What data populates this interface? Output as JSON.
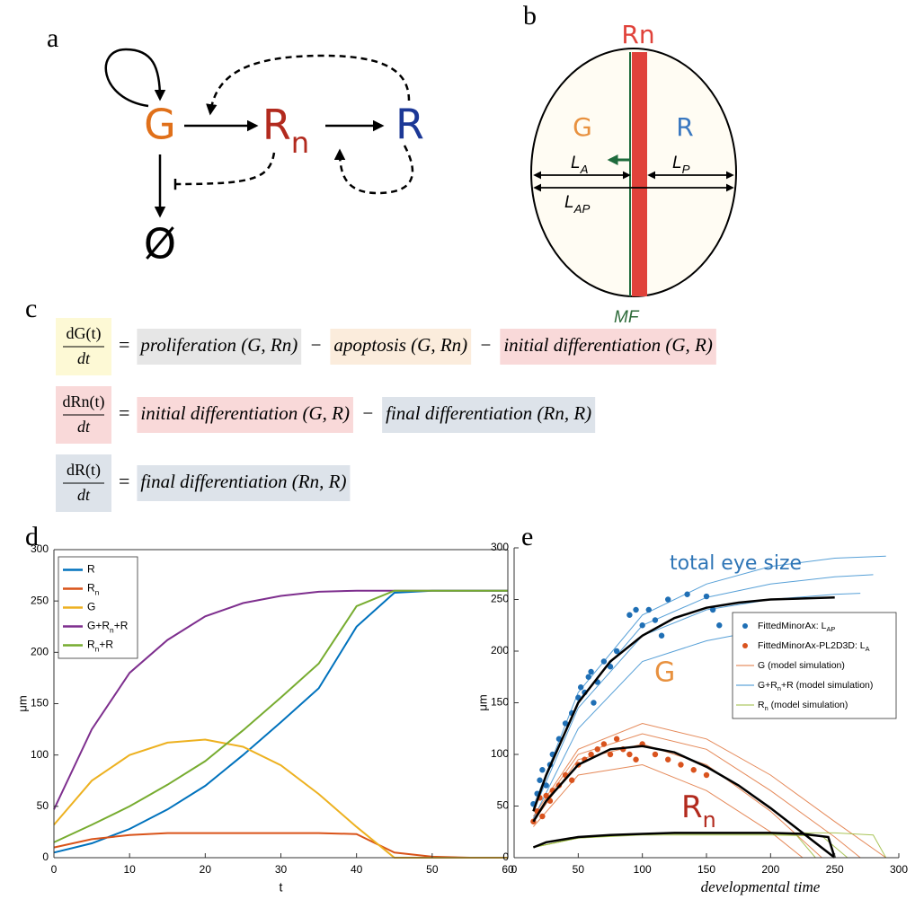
{
  "labels": [
    "a",
    "b",
    "c",
    "d",
    "e"
  ],
  "diagram_a": {
    "nodes": [
      {
        "label": "G",
        "color": "#e0701a"
      },
      {
        "label": "R_n",
        "color": "#b22a1e"
      },
      {
        "label": "R",
        "color": "#1c3896"
      },
      {
        "label": "Ø",
        "color": "#000000"
      }
    ]
  },
  "diagram_b": {
    "top": "Rn",
    "top_color": "#e0423a",
    "left": "G",
    "left_color": "#e8913f",
    "right": "R",
    "right_color": "#3a78c0",
    "la": "L_A",
    "lp": "L_P",
    "lap": "L_{AP}",
    "mf": "MF",
    "mf_color": "#2e6b3a"
  },
  "equations": [
    {
      "numerator": "dG(t)",
      "denominator": "dt",
      "lhs_color": "#fdf9d5",
      "equals": "=",
      "terms": [
        {
          "text": "proliferation (G, Rn)",
          "color": "#e6e6e6"
        },
        {
          "text": "−"
        },
        {
          "text": "apoptosis (G, Rn)",
          "color": "#fbecdc"
        },
        {
          "text": "−"
        },
        {
          "text": "initial differentiation (G, R)",
          "color": "#f9d9d9"
        }
      ]
    },
    {
      "numerator": "dRn(t)",
      "denominator": "dt",
      "lhs_color": "#f9d9d9",
      "equals": "=",
      "terms": [
        {
          "text": "initial differentiation (G, R)",
          "color": "#f9d9d9"
        },
        {
          "text": "−"
        },
        {
          "text": "final differentiation (Rn, R)",
          "color": "#dde3ea"
        }
      ]
    },
    {
      "numerator": "dR(t)",
      "denominator": "dt",
      "lhs_color": "#dde3ea",
      "equals": "=",
      "terms": [
        {
          "text": "final differentiation (Rn, R)",
          "color": "#dde3ea"
        }
      ]
    }
  ],
  "chart_data": [
    {
      "type": "line",
      "xlabel": "t",
      "ylabel": "μm",
      "box": true,
      "legend": "upper left",
      "xlim": [
        0,
        60
      ],
      "xticks": [
        0,
        10,
        20,
        30,
        40,
        50,
        60
      ],
      "ylim": [
        0,
        300
      ],
      "yticks": [
        0,
        50,
        100,
        150,
        200,
        250,
        300
      ],
      "x": [
        0,
        5,
        10,
        15,
        20,
        25,
        30,
        35,
        40,
        45,
        50,
        55,
        60
      ],
      "series": [
        {
          "name": "R",
          "color": "#0072bd",
          "values": [
            5,
            14,
            28,
            47,
            70,
            100,
            132,
            165,
            225,
            258,
            260,
            260,
            260
          ]
        },
        {
          "name": "R_n",
          "color": "#d95319",
          "values": [
            10,
            18,
            22,
            24,
            24,
            24,
            24,
            24,
            23,
            5,
            1,
            0,
            0
          ]
        },
        {
          "name": "G",
          "color": "#edb120",
          "values": [
            32,
            75,
            100,
            112,
            115,
            108,
            90,
            62,
            30,
            0,
            0,
            0,
            0
          ]
        },
        {
          "name": "G+R_n+R",
          "color": "#7e2f8e",
          "values": [
            47,
            125,
            180,
            212,
            235,
            248,
            255,
            259,
            260,
            260,
            260,
            260,
            260
          ]
        },
        {
          "name": "R_n+R",
          "color": "#77ac30",
          "values": [
            15,
            32,
            50,
            71,
            94,
            124,
            156,
            189,
            245,
            260,
            260,
            260,
            260
          ]
        }
      ]
    },
    {
      "type": "line",
      "xlabel": "developmental time",
      "ylabel": "μm",
      "box": false,
      "legend": "right",
      "xlim": [
        0,
        300
      ],
      "xticks": [
        0,
        50,
        100,
        150,
        200,
        250,
        300
      ],
      "ylim": [
        0,
        300
      ],
      "yticks": [
        0,
        50,
        100,
        150,
        200,
        250,
        300
      ],
      "annotations": [
        {
          "text": "total eye size",
          "color": "#2e75b6"
        },
        {
          "text": "G",
          "color": "#e8913f"
        },
        {
          "text": "R_n",
          "color": "#b22a1e"
        }
      ],
      "series": [
        {
          "type": "scatter",
          "name": "FittedMinorAx: L_{AP}",
          "color": "#1f6fb5",
          "x": [
            15,
            18,
            20,
            22,
            25,
            28,
            30,
            35,
            40,
            45,
            50,
            52,
            55,
            58,
            60,
            62,
            65,
            70,
            75,
            80,
            90,
            95,
            100,
            105,
            110,
            115,
            120,
            135,
            150,
            155,
            160
          ],
          "values": [
            52,
            62,
            75,
            85,
            70,
            90,
            100,
            115,
            130,
            140,
            155,
            165,
            160,
            175,
            180,
            150,
            170,
            190,
            185,
            200,
            235,
            240,
            225,
            240,
            230,
            215,
            250,
            255,
            253,
            240,
            225
          ]
        },
        {
          "type": "scatter",
          "name": "FittedMinorAx-PL2D3D: L_A",
          "color": "#d9531e",
          "x": [
            15,
            18,
            20,
            22,
            25,
            28,
            30,
            35,
            40,
            45,
            50,
            55,
            60,
            65,
            70,
            75,
            80,
            85,
            90,
            95,
            100,
            110,
            120,
            130,
            140,
            150
          ],
          "values": [
            35,
            45,
            58,
            40,
            60,
            55,
            65,
            70,
            80,
            75,
            90,
            95,
            100,
            105,
            110,
            100,
            115,
            105,
            100,
            95,
            110,
            100,
            95,
            90,
            85,
            80
          ]
        },
        {
          "name": "G (model simulation)",
          "color": "#e0743c",
          "runs": [
            {
              "x": [
                15,
                50,
                100,
                150,
                200,
                250,
                290
              ],
              "values": [
                40,
                105,
                130,
                115,
                80,
                35,
                0
              ]
            },
            {
              "x": [
                15,
                50,
                100,
                150,
                200,
                240
              ],
              "values": [
                35,
                95,
                110,
                90,
                45,
                0
              ]
            },
            {
              "x": [
                15,
                50,
                100,
                150,
                200,
                225
              ],
              "values": [
                30,
                80,
                90,
                65,
                25,
                0
              ]
            },
            {
              "x": [
                15,
                50,
                100,
                150,
                200,
                250,
                270
              ],
              "values": [
                38,
                100,
                120,
                105,
                65,
                20,
                0
              ]
            }
          ]
        },
        {
          "name": "G+R_n+R (model simulation)",
          "color": "#3a8fd0",
          "runs": [
            {
              "x": [
                15,
                50,
                100,
                150,
                200,
                250,
                290
              ],
              "values": [
                50,
                160,
                235,
                265,
                282,
                290,
                292
              ]
            },
            {
              "x": [
                15,
                50,
                100,
                150,
                200,
                250,
                270
              ],
              "values": [
                45,
                145,
                215,
                240,
                250,
                255,
                256
              ]
            },
            {
              "x": [
                15,
                50,
                100,
                150,
                200,
                220
              ],
              "values": [
                38,
                125,
                190,
                210,
                222,
                225
              ]
            },
            {
              "x": [
                15,
                50,
                100,
                150,
                200,
                250,
                280
              ],
              "values": [
                48,
                152,
                225,
                252,
                265,
                272,
                274
              ]
            }
          ]
        },
        {
          "name": "R_n (model simulation)",
          "color": "#9bbb3c",
          "runs": [
            {
              "x": [
                15,
                50,
                100,
                150,
                200,
                250,
                280,
                290
              ],
              "values": [
                10,
                19,
                23,
                24,
                24,
                24,
                22,
                0
              ]
            },
            {
              "x": [
                15,
                50,
                100,
                150,
                200,
                240,
                260
              ],
              "values": [
                10,
                19,
                22,
                22,
                22,
                21,
                0
              ]
            },
            {
              "x": [
                15,
                50,
                100,
                150,
                200,
                220,
                235
              ],
              "values": [
                10,
                19,
                23,
                23,
                23,
                22,
                0
              ]
            }
          ]
        }
      ],
      "fits": [
        {
          "color": "#000000",
          "x": [
            15,
            25,
            50,
            75,
            100,
            125,
            150,
            175,
            200,
            225,
            250
          ],
          "values": [
            45,
            80,
            150,
            190,
            215,
            232,
            242,
            247,
            250,
            251,
            252
          ]
        },
        {
          "color": "#000000",
          "x": [
            15,
            25,
            50,
            75,
            100,
            125,
            150,
            175,
            200,
            225,
            250
          ],
          "values": [
            35,
            55,
            90,
            105,
            108,
            102,
            88,
            70,
            48,
            24,
            0
          ]
        },
        {
          "color": "#000000",
          "x": [
            15,
            25,
            50,
            75,
            100,
            125,
            150,
            175,
            200,
            225,
            245,
            250
          ],
          "values": [
            10,
            15,
            20,
            22,
            23,
            24,
            24,
            24,
            24,
            23,
            20,
            0
          ]
        }
      ]
    }
  ]
}
